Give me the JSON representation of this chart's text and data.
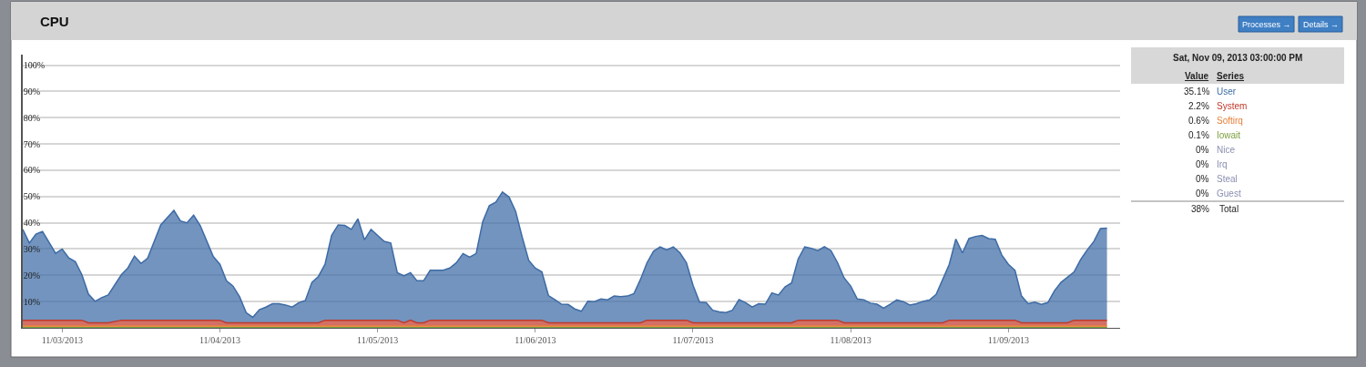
{
  "chart_data": {
    "type": "area",
    "title": "CPU",
    "stacked": true,
    "grid": "y",
    "legend": "right",
    "marker": "none",
    "line_style": "solid",
    "xlim": [
      "2013-11-02T18:00",
      "2013-11-09T17:00"
    ],
    "ylim": [
      0,
      104
    ],
    "xticks": [
      {
        "value": "2013-11-03",
        "label": "11/03/2013"
      },
      {
        "value": "2013-11-04",
        "label": "11/04/2013"
      },
      {
        "value": "2013-11-05",
        "label": "11/05/2013"
      },
      {
        "value": "2013-11-06",
        "label": "11/06/2013"
      },
      {
        "value": "2013-11-07",
        "label": "11/07/2013"
      },
      {
        "value": "2013-11-08",
        "label": "11/08/2013"
      },
      {
        "value": "2013-11-09",
        "label": "11/09/2013"
      }
    ],
    "yticks": [
      {
        "value": 10,
        "label": "10%"
      },
      {
        "value": 20,
        "label": "20%"
      },
      {
        "value": 30,
        "label": "30%"
      },
      {
        "value": 40,
        "label": "40%"
      },
      {
        "value": 50,
        "label": "50%"
      },
      {
        "value": 60,
        "label": "60%"
      },
      {
        "value": 70,
        "label": "70%"
      },
      {
        "value": 80,
        "label": "80%"
      },
      {
        "value": 90,
        "label": "90%"
      },
      {
        "value": 100,
        "label": "100%"
      }
    ],
    "x": [
      "2013-11-02T18:00",
      "2013-11-02T19:00",
      "2013-11-02T20:00",
      "2013-11-02T21:00",
      "2013-11-02T23:00",
      "2013-11-03T00:00",
      "2013-11-03T01:00",
      "2013-11-03T02:00",
      "2013-11-03T03:00",
      "2013-11-03T04:00",
      "2013-11-03T05:00",
      "2013-11-03T06:00",
      "2013-11-03T07:00",
      "2013-11-03T09:00",
      "2013-11-03T10:00",
      "2013-11-03T11:00",
      "2013-11-03T12:00",
      "2013-11-03T13:00",
      "2013-11-03T15:00",
      "2013-11-03T17:00",
      "2013-11-03T18:00",
      "2013-11-03T19:00",
      "2013-11-03T20:00",
      "2013-11-03T21:00",
      "2013-11-03T23:00",
      "2013-11-04T00:00",
      "2013-11-04T01:00",
      "2013-11-04T02:00",
      "2013-11-04T03:00",
      "2013-11-04T04:00",
      "2013-11-04T05:00",
      "2013-11-04T06:00",
      "2013-11-04T07:00",
      "2013-11-04T08:00",
      "2013-11-04T09:00",
      "2013-11-04T10:00",
      "2013-11-04T11:00",
      "2013-11-04T12:00",
      "2013-11-04T13:00",
      "2013-11-04T14:00",
      "2013-11-04T15:00",
      "2013-11-04T16:00",
      "2013-11-04T17:00",
      "2013-11-04T18:00",
      "2013-11-04T19:00",
      "2013-11-04T20:00",
      "2013-11-04T21:00",
      "2013-11-04T22:00",
      "2013-11-04T23:00",
      "2013-11-05T00:00",
      "2013-11-05T01:00",
      "2013-11-05T02:00",
      "2013-11-05T03:00",
      "2013-11-05T04:00",
      "2013-11-05T05:00",
      "2013-11-05T06:00",
      "2013-11-05T07:00",
      "2013-11-05T08:00",
      "2013-11-05T09:00",
      "2013-11-05T10:00",
      "2013-11-05T11:00",
      "2013-11-05T12:00",
      "2013-11-05T13:00",
      "2013-11-05T14:00",
      "2013-11-05T15:00",
      "2013-11-05T16:00",
      "2013-11-05T17:00",
      "2013-11-05T18:00",
      "2013-11-05T19:00",
      "2013-11-05T20:00",
      "2013-11-05T21:00",
      "2013-11-05T22:00",
      "2013-11-05T23:00",
      "2013-11-06T00:00",
      "2013-11-06T01:00",
      "2013-11-06T02:00",
      "2013-11-06T03:00",
      "2013-11-06T04:00",
      "2013-11-06T05:00",
      "2013-11-06T06:00",
      "2013-11-06T07:00",
      "2013-11-06T08:00",
      "2013-11-06T09:00",
      "2013-11-06T10:00",
      "2013-11-06T11:00",
      "2013-11-06T12:00",
      "2013-11-06T13:00",
      "2013-11-06T14:00",
      "2013-11-06T15:00",
      "2013-11-06T16:00",
      "2013-11-06T17:00",
      "2013-11-06T18:00",
      "2013-11-06T19:00",
      "2013-11-06T20:00",
      "2013-11-06T21:00",
      "2013-11-06T22:00",
      "2013-11-06T23:00",
      "2013-11-07T00:00",
      "2013-11-07T01:00",
      "2013-11-07T02:00",
      "2013-11-07T03:00",
      "2013-11-07T04:00",
      "2013-11-07T05:00",
      "2013-11-07T06:00",
      "2013-11-07T07:00",
      "2013-11-07T08:00",
      "2013-11-07T09:00",
      "2013-11-07T10:00",
      "2013-11-07T11:00",
      "2013-11-07T12:00",
      "2013-11-07T13:00",
      "2013-11-07T14:00",
      "2013-11-07T15:00",
      "2013-11-07T16:00",
      "2013-11-07T17:00",
      "2013-11-07T18:00",
      "2013-11-07T19:00",
      "2013-11-07T20:00",
      "2013-11-07T21:00",
      "2013-11-07T22:00",
      "2013-11-07T23:00",
      "2013-11-08T00:00",
      "2013-11-08T01:00",
      "2013-11-08T02:00",
      "2013-11-08T03:00",
      "2013-11-08T04:00",
      "2013-11-08T05:00",
      "2013-11-08T06:00",
      "2013-11-08T07:00",
      "2013-11-08T08:00",
      "2013-11-08T09:00",
      "2013-11-08T10:00",
      "2013-11-08T11:00",
      "2013-11-08T12:00",
      "2013-11-08T13:00",
      "2013-11-08T14:00",
      "2013-11-08T15:00",
      "2013-11-08T16:00",
      "2013-11-08T17:00",
      "2013-11-08T18:00",
      "2013-11-08T19:00",
      "2013-11-08T20:00",
      "2013-11-08T21:00",
      "2013-11-08T22:00",
      "2013-11-08T23:00",
      "2013-11-09T00:00",
      "2013-11-09T01:00",
      "2013-11-09T02:00",
      "2013-11-09T03:00",
      "2013-11-09T04:00",
      "2013-11-09T05:00",
      "2013-11-09T06:00",
      "2013-11-09T07:00",
      "2013-11-09T08:00",
      "2013-11-09T09:00",
      "2013-11-09T10:00",
      "2013-11-09T11:00",
      "2013-11-09T12:00",
      "2013-11-09T13:00",
      "2013-11-09T14:00",
      "2013-11-09T15:00"
    ],
    "series": [
      {
        "name": "Iowait",
        "color": "#7aa040",
        "values": [
          0.1,
          0.1,
          0.1,
          0.1,
          0.1,
          0.1,
          0.1,
          0.1,
          0.1,
          0.1,
          0.1,
          0.1,
          0.1,
          0.1,
          0.1,
          0.1,
          0.1,
          0.1,
          0.1,
          0.1,
          0.1,
          0.1,
          0.1,
          0.1,
          0.1,
          0.1,
          0.1,
          0.1,
          0.1,
          0.1,
          0.1,
          0.1,
          0.1,
          0.1,
          0.1,
          0.1,
          0.1,
          0.1,
          0.1,
          0.1,
          0.1,
          0.1,
          0.1,
          0.1,
          0.1,
          0.1,
          0.1,
          0.1,
          0.1,
          0.1,
          0.1,
          0.1,
          0.1,
          0.1,
          0.1,
          0.1,
          0.1,
          0.1,
          0.1,
          0.1,
          0.1,
          0.1,
          0.1,
          0.1,
          0.1,
          0.1,
          0.1,
          0.1,
          0.1,
          0.1,
          0.1,
          0.1,
          0.1,
          0.1,
          0.1,
          0.1,
          0.1,
          0.1,
          0.1,
          0.1,
          0.1,
          0.1,
          0.1,
          0.1,
          0.1,
          0.1,
          0.1,
          0.1,
          0.1,
          0.1,
          0.1,
          0.1,
          0.1,
          0.1,
          0.1,
          0.1,
          0.1,
          0.1,
          0.1,
          0.1,
          0.1,
          0.1,
          0.1,
          0.1,
          0.1,
          0.1,
          0.1,
          0.1,
          0.1,
          0.1,
          0.1,
          0.1,
          0.1,
          0.1,
          0.1,
          0.1,
          0.1,
          0.1,
          0.1,
          0.1,
          0.1,
          0.1,
          0.1,
          0.1,
          0.1,
          0.1,
          0.1,
          0.1,
          0.1,
          0.1,
          0.1,
          0.1,
          0.1,
          0.1,
          0.1,
          0.1,
          0.1,
          0.1,
          0.1,
          0.1,
          0.1,
          0.1,
          0.1,
          0.1,
          0.1,
          0.1,
          0.1,
          0.1,
          0.1,
          0.1,
          0.1,
          0.1,
          0.1,
          0.1,
          0.1,
          0.1,
          0.1,
          0.1,
          0.1,
          0.1,
          0.1
        ]
      },
      {
        "name": "Softirq",
        "color": "#e8803a",
        "values": [
          0.6,
          0.6,
          0.6,
          0.6,
          0.6,
          0.6,
          0.6,
          0.6,
          0.6,
          0.6,
          0.6,
          0.6,
          0.6,
          0.6,
          0.6,
          0.6,
          0.6,
          0.6,
          0.6,
          0.6,
          0.6,
          0.6,
          0.6,
          0.6,
          0.6,
          0.6,
          0.6,
          0.6,
          0.6,
          0.6,
          0.6,
          0.6,
          0.6,
          0.6,
          0.6,
          0.6,
          0.6,
          0.6,
          0.6,
          0.6,
          0.6,
          0.6,
          0.6,
          0.6,
          0.6,
          0.6,
          0.6,
          0.6,
          0.6,
          0.6,
          0.6,
          0.6,
          0.6,
          0.6,
          0.6,
          0.6,
          0.6,
          0.6,
          0.6,
          0.6,
          0.6,
          0.6,
          0.6,
          0.6,
          0.6,
          0.6,
          0.6,
          0.6,
          0.6,
          0.6,
          0.6,
          0.6,
          0.6,
          0.6,
          0.6,
          0.6,
          0.6,
          0.6,
          0.6,
          0.6,
          0.6,
          0.6,
          0.6,
          0.6,
          0.6,
          0.6,
          0.6,
          0.6,
          0.6,
          0.6,
          0.6,
          0.6,
          0.6,
          0.6,
          0.6,
          0.6,
          0.6,
          0.6,
          0.6,
          0.6,
          0.6,
          0.6,
          0.6,
          0.6,
          0.6,
          0.6,
          0.6,
          0.6,
          0.6,
          0.6,
          0.6,
          0.6,
          0.6,
          0.6,
          0.6,
          0.6,
          0.6,
          0.6,
          0.6,
          0.6,
          0.6,
          0.6,
          0.6,
          0.6,
          0.6,
          0.6,
          0.6,
          0.6,
          0.6,
          0.6,
          0.6,
          0.6,
          0.6,
          0.6,
          0.6,
          0.6,
          0.6,
          0.6,
          0.6,
          0.6,
          0.6,
          0.6,
          0.6,
          0.6,
          0.6,
          0.6,
          0.6,
          0.6,
          0.6,
          0.6,
          0.6,
          0.6,
          0.6,
          0.6,
          0.6,
          0.6,
          0.6,
          0.6,
          0.6,
          0.6,
          0.6
        ]
      },
      {
        "name": "System",
        "color": "#c0392b",
        "values": [
          2.2,
          2.2,
          2.2,
          2.2,
          2.2,
          2.2,
          2.2,
          2.2,
          2.2,
          1.2,
          1.2,
          1.2,
          1.2,
          2.2,
          2.2,
          2.2,
          2.2,
          2.2,
          2.2,
          2.2,
          2.2,
          2.2,
          2.2,
          2.2,
          2.2,
          2.2,
          1.2,
          1.2,
          1.2,
          1.2,
          1.2,
          1.2,
          1.2,
          1.2,
          1.2,
          1.2,
          1.2,
          1.2,
          1.2,
          1.2,
          1.2,
          2.2,
          2.2,
          2.2,
          2.2,
          2.2,
          2.2,
          2.2,
          2.2,
          2.2,
          2.2,
          2.2,
          2.2,
          1.2,
          2.2,
          1.2,
          1.2,
          2.2,
          2.2,
          2.2,
          2.2,
          2.2,
          2.2,
          2.2,
          2.2,
          2.2,
          2.2,
          2.2,
          2.2,
          2.2,
          2.2,
          2.2,
          2.2,
          2.2,
          2.2,
          1.2,
          1.2,
          1.2,
          1.2,
          1.2,
          1.2,
          1.2,
          1.2,
          1.2,
          1.2,
          1.2,
          1.2,
          1.2,
          1.2,
          1.2,
          2.2,
          2.2,
          2.2,
          2.2,
          2.2,
          2.2,
          2.2,
          1.2,
          1.2,
          1.2,
          1.2,
          1.2,
          1.2,
          1.2,
          1.2,
          1.2,
          1.2,
          1.2,
          1.2,
          1.2,
          1.2,
          1.2,
          1.2,
          2.2,
          2.2,
          2.2,
          2.2,
          2.2,
          2.2,
          2.2,
          1.2,
          1.2,
          1.2,
          1.2,
          1.2,
          1.2,
          1.2,
          1.2,
          1.2,
          1.2,
          1.2,
          1.2,
          1.2,
          1.2,
          1.2,
          1.2,
          2.2,
          2.2,
          2.2,
          2.2,
          2.2,
          2.2,
          2.2,
          2.2,
          2.2,
          2.2,
          2.2,
          1.2,
          1.2,
          1.2,
          1.2,
          1.2,
          1.2,
          1.2,
          1.2,
          2.2,
          2.2,
          2.2,
          2.2,
          2.2,
          2.2
        ]
      },
      {
        "name": "User",
        "color": "#3d6ba5",
        "values": [
          34.6,
          29.4,
          32.8,
          33.8,
          25.5,
          27.1,
          23.7,
          22.3,
          17.3,
          10.9,
          8.2,
          9.6,
          10.6,
          17.3,
          19.9,
          24.4,
          21.6,
          23.6,
          36.3,
          41.8,
          37.8,
          37.1,
          40,
          36.1,
          24.2,
          21.3,
          16,
          14,
          9.9,
          3.9,
          2.1,
          5,
          6,
          7.3,
          7.3,
          6.8,
          6,
          7.7,
          8.5,
          15.4,
          17.7,
          21.3,
          32.3,
          36.3,
          36.1,
          34.6,
          38.6,
          30.6,
          34.6,
          32.3,
          30,
          29.4,
          18.1,
          17.9,
          18.1,
          16,
          16,
          19,
          19,
          19,
          19.9,
          21.9,
          25.4,
          24,
          25.4,
          37.5,
          43.6,
          45,
          48.8,
          46.9,
          41.5,
          31.7,
          22.8,
          19.8,
          18.4,
          10.4,
          8.8,
          7.1,
          7,
          5.3,
          4.4,
          8.2,
          8.1,
          9.1,
          8.8,
          10.2,
          10,
          10.2,
          11.1,
          16.5,
          21.9,
          26.3,
          27.9,
          26.8,
          27.9,
          25.7,
          21.9,
          14.3,
          7.9,
          7.7,
          4.8,
          4.2,
          3.9,
          4.8,
          8.9,
          7.7,
          6,
          7.3,
          7.1,
          11.4,
          10.6,
          13.7,
          15.2,
          23.3,
          27.9,
          27.4,
          26.5,
          28,
          26.5,
          21.9,
          17.1,
          14,
          9.1,
          8.8,
          7.5,
          7.1,
          5.6,
          7.1,
          8.7,
          8.1,
          6.8,
          7.3,
          8.2,
          8.7,
          10.8,
          16.5,
          21.3,
          30.9,
          25.6,
          31.1,
          31.9,
          32.3,
          31.1,
          30.8,
          24.8,
          21.3,
          19,
          10.2,
          7.3,
          7.9,
          7,
          7.7,
          12.2,
          15.4,
          17.4,
          18.4,
          23.1,
          26.8,
          30,
          34.9,
          35.1
        ]
      }
    ],
    "annotations": [
      "Sat, Nov 09, 2013 03:00:00 PM",
      "Value",
      "Series",
      "35.1%",
      "2.2%",
      "0.6%",
      "0.1%",
      "0%",
      "Nice",
      "0%",
      "Irq",
      "0%",
      "Steal",
      "0%",
      "Guest",
      "38%",
      "Total",
      "Processes →",
      "Details →"
    ]
  }
}
